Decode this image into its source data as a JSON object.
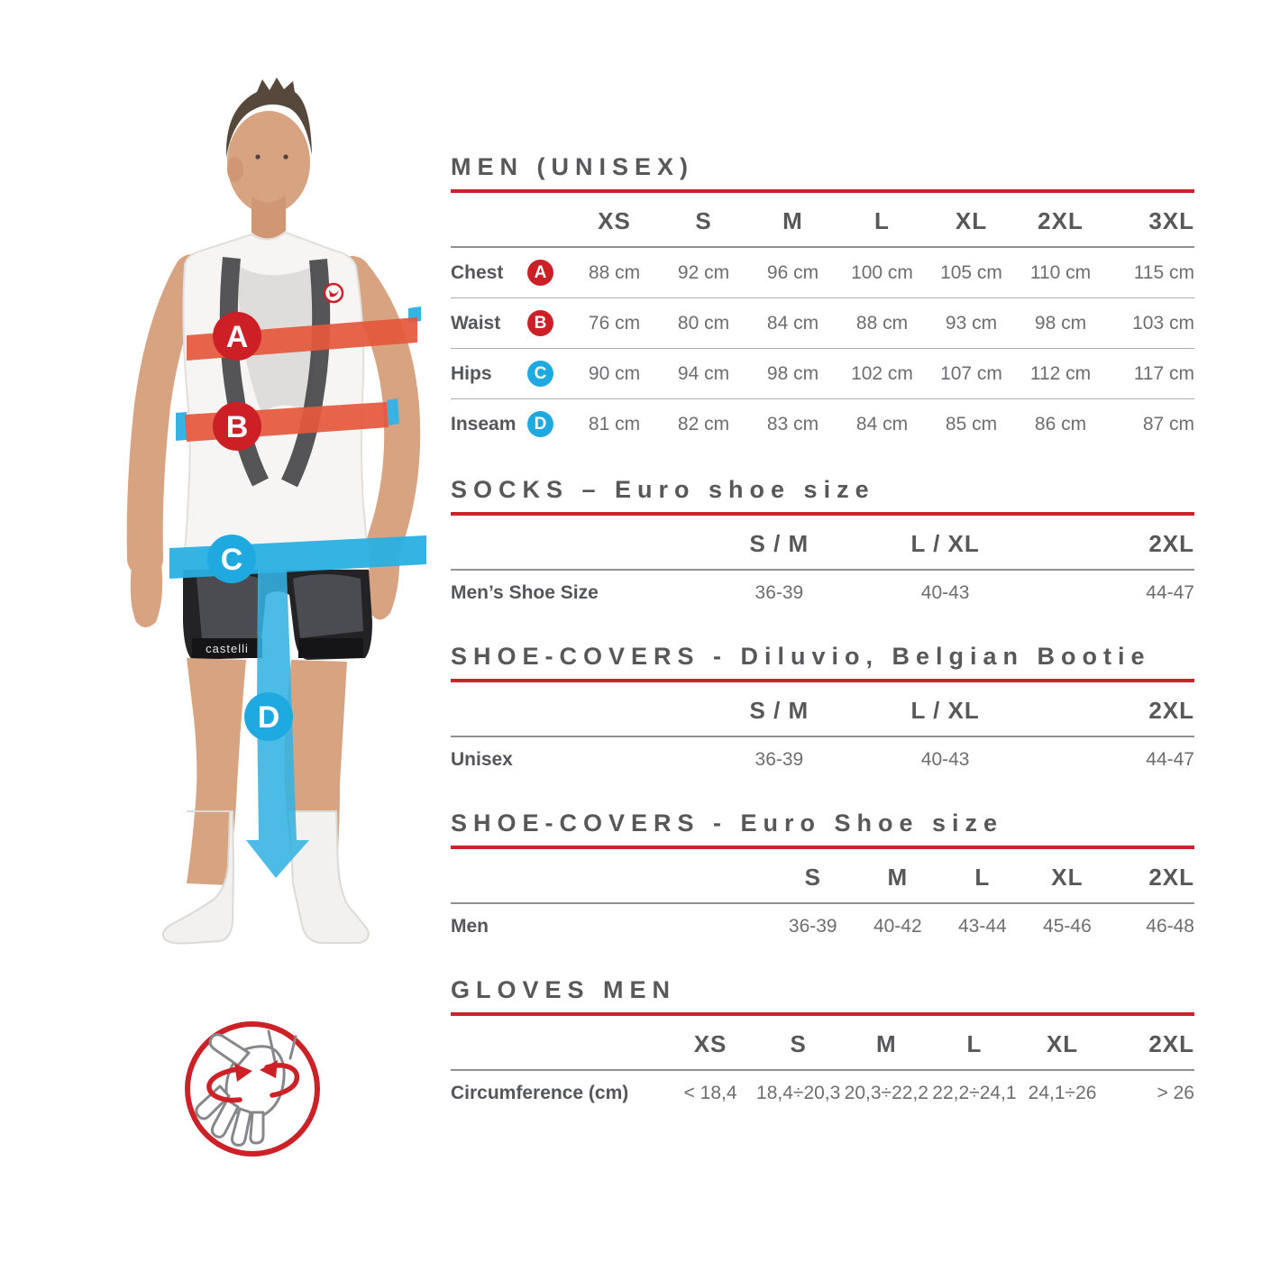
{
  "colors": {
    "accent_red": "#c9242b",
    "marker_red": "#cc1f26",
    "marker_blue": "#1fa9e1",
    "band_orange": "#e4583b",
    "band_blue": "#29b0e2",
    "heading_text": "#58585a",
    "value_text": "#6d6e71"
  },
  "icons": {
    "hand_measure": "hand-circumference-icon"
  },
  "figure": {
    "brand": "castelli",
    "markers": [
      {
        "label": "A",
        "measure": "Chest",
        "color": "#cc1f26"
      },
      {
        "label": "B",
        "measure": "Waist",
        "color": "#cc1f26"
      },
      {
        "label": "C",
        "measure": "Hips",
        "color": "#1fa9e1"
      },
      {
        "label": "D",
        "measure": "Inseam",
        "color": "#1fa9e1"
      }
    ]
  },
  "sections": [
    {
      "title": "MEN (UNISEX)",
      "columns": [
        "XS",
        "S",
        "M",
        "L",
        "XL",
        "2XL",
        "3XL"
      ],
      "rows": [
        {
          "label": "Chest",
          "marker": "A",
          "marker_color": "red",
          "values": [
            "88 cm",
            "92 cm",
            "96 cm",
            "100 cm",
            "105 cm",
            "110 cm",
            "115 cm"
          ]
        },
        {
          "label": "Waist",
          "marker": "B",
          "marker_color": "red",
          "values": [
            "76 cm",
            "80 cm",
            "84 cm",
            "88 cm",
            "93 cm",
            "98 cm",
            "103 cm"
          ]
        },
        {
          "label": "Hips",
          "marker": "C",
          "marker_color": "blue",
          "values": [
            "90 cm",
            "94 cm",
            "98 cm",
            "102 cm",
            "107 cm",
            "112 cm",
            "117 cm"
          ]
        },
        {
          "label": "Inseam",
          "marker": "D",
          "marker_color": "blue",
          "values": [
            "81 cm",
            "82 cm",
            "83 cm",
            "84 cm",
            "85 cm",
            "86 cm",
            "87 cm"
          ]
        }
      ]
    },
    {
      "title": "SOCKS – Euro shoe size",
      "columns": [
        "S / M",
        "L / XL",
        "2XL"
      ],
      "rows": [
        {
          "label": "Men’s Shoe Size",
          "values": [
            "36-39",
            "40-43",
            "44-47"
          ]
        }
      ]
    },
    {
      "title": "SHOE-COVERS - Diluvio, Belgian Bootie",
      "columns": [
        "S / M",
        "L / XL",
        "2XL"
      ],
      "rows": [
        {
          "label": "Unisex",
          "values": [
            "36-39",
            "40-43",
            "44-47"
          ]
        }
      ]
    },
    {
      "title": "SHOE-COVERS - Euro Shoe size",
      "columns": [
        "S",
        "M",
        "L",
        "XL",
        "2XL"
      ],
      "rows": [
        {
          "label": "Men",
          "values": [
            "36-39",
            "40-42",
            "43-44",
            "45-46",
            "46-48"
          ]
        }
      ]
    },
    {
      "title": "GLOVES MEN",
      "columns": [
        "XS",
        "S",
        "M",
        "L",
        "XL",
        "2XL"
      ],
      "rows": [
        {
          "label": "Circumference (cm)",
          "values": [
            "< 18,4",
            "18,4÷20,3",
            "20,3÷22,2",
            "22,2÷24,1",
            "24,1÷26",
            "> 26"
          ]
        }
      ]
    }
  ]
}
